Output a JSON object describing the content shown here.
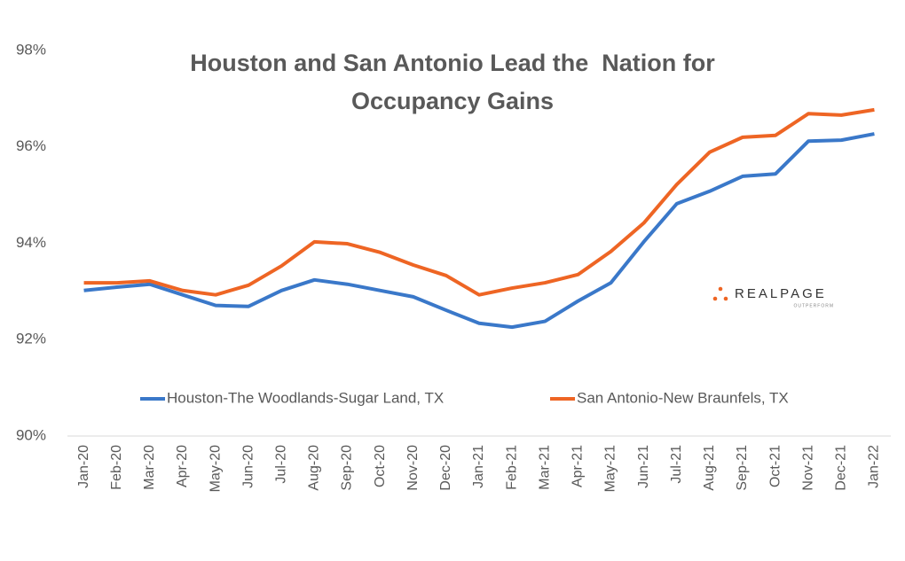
{
  "chart_data": {
    "type": "line",
    "title": [
      "Houston and San Antonio Lead the  Nation for",
      "Occupancy Gains"
    ],
    "categories": [
      "Jan-20",
      "Feb-20",
      "Mar-20",
      "Apr-20",
      "May-20",
      "Jun-20",
      "Jul-20",
      "Aug-20",
      "Sep-20",
      "Oct-20",
      "Nov-20",
      "Dec-20",
      "Jan-21",
      "Feb-21",
      "Mar-21",
      "Apr-21",
      "May-21",
      "Jun-21",
      "Jul-21",
      "Aug-21",
      "Sep-21",
      "Oct-21",
      "Nov-21",
      "Dec-21",
      "Jan-22"
    ],
    "series": [
      {
        "name": "Houston-The Woodlands-Sugar Land, TX",
        "color": "#3a78c9",
        "values": [
          93.02,
          93.09,
          93.15,
          92.93,
          92.71,
          92.69,
          93.02,
          93.24,
          93.15,
          93.02,
          92.89,
          92.61,
          92.34,
          92.26,
          92.38,
          92.8,
          93.18,
          94.03,
          94.82,
          95.08,
          95.39,
          95.44,
          96.12,
          96.14,
          96.27
        ]
      },
      {
        "name": "San Antonio-New Braunfels, TX",
        "color": "#ee6524",
        "values": [
          93.18,
          93.18,
          93.22,
          93.02,
          92.93,
          93.13,
          93.53,
          94.03,
          93.99,
          93.81,
          93.55,
          93.33,
          92.93,
          93.07,
          93.18,
          93.35,
          93.83,
          94.42,
          95.22,
          95.89,
          96.2,
          96.24,
          96.69,
          96.66,
          96.77
        ]
      }
    ],
    "ylim": [
      90,
      98
    ],
    "yticks": [
      {
        "value": 90,
        "label": "90%"
      },
      {
        "value": 92,
        "label": "92%"
      },
      {
        "value": 94,
        "label": "94%"
      },
      {
        "value": 96,
        "label": "96%"
      },
      {
        "value": 98,
        "label": "98%"
      }
    ],
    "grid": false,
    "legend": "bottom",
    "logo": {
      "name": "REALPAGE",
      "tagline": "OUTPERFORM"
    }
  }
}
